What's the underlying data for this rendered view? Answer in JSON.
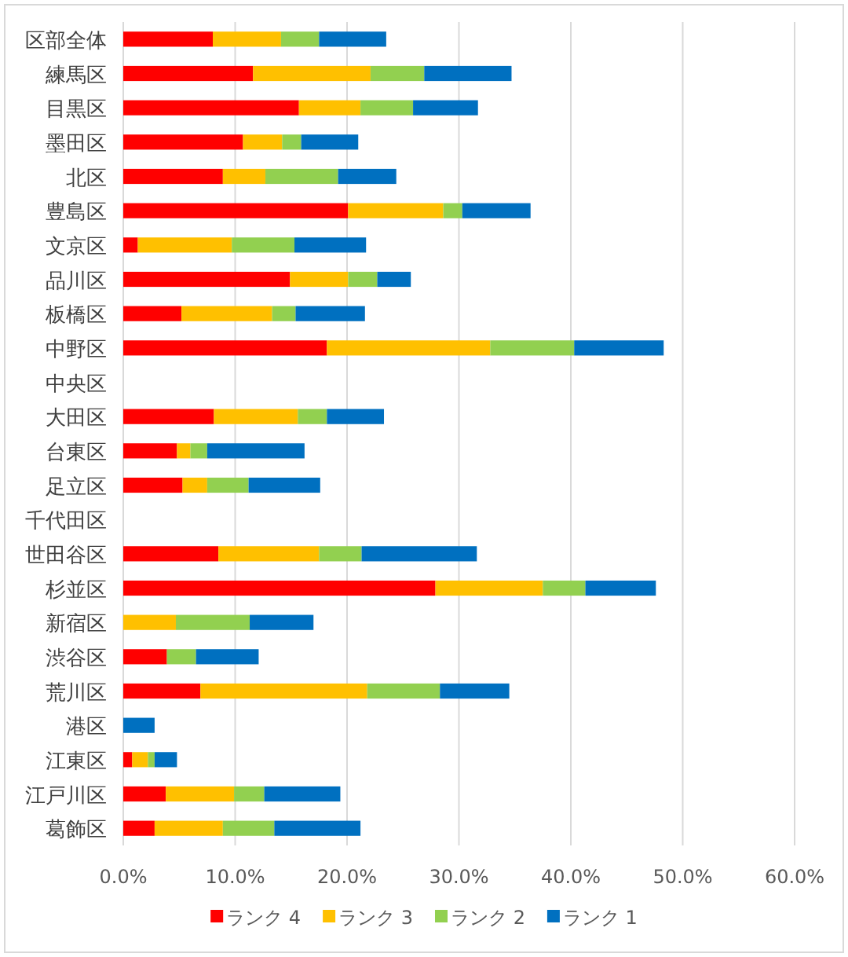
{
  "chart_data": {
    "type": "bar",
    "orientation": "horizontal",
    "stacked": true,
    "categories": [
      "区部全体",
      "練馬区",
      "目黒区",
      "墨田区",
      "北区",
      "豊島区",
      "文京区",
      "品川区",
      "板橋区",
      "中野区",
      "中央区",
      "大田区",
      "台東区",
      "足立区",
      "千代田区",
      "世田谷区",
      "杉並区",
      "新宿区",
      "渋谷区",
      "荒川区",
      "港区",
      "江東区",
      "江戸川区",
      "葛飾区"
    ],
    "series": [
      {
        "name": "ランク 4",
        "color": "#ff0000",
        "values": [
          8.0,
          11.6,
          15.7,
          10.7,
          8.9,
          20.1,
          1.3,
          14.9,
          5.2,
          18.2,
          null,
          8.1,
          4.8,
          5.3,
          null,
          8.5,
          27.9,
          0,
          3.9,
          6.9,
          0,
          0.8,
          3.8,
          2.8
        ]
      },
      {
        "name": "ランク 3",
        "color": "#ffc000",
        "values": [
          6.1,
          10.5,
          5.5,
          3.5,
          3.8,
          8.5,
          8.4,
          5.2,
          8.1,
          14.6,
          null,
          7.5,
          1.2,
          2.2,
          null,
          9.0,
          9.6,
          4.7,
          0,
          14.9,
          0,
          1.4,
          6.1,
          6.1
        ]
      },
      {
        "name": "ランク 2",
        "color": "#92d050",
        "values": [
          3.4,
          4.8,
          4.7,
          1.7,
          6.5,
          1.7,
          5.6,
          2.6,
          2.1,
          7.5,
          null,
          2.6,
          1.5,
          3.7,
          null,
          3.8,
          3.8,
          6.6,
          2.6,
          6.5,
          0,
          0.6,
          2.7,
          4.6
        ]
      },
      {
        "name": "ランク 1",
        "color": "#0070c0",
        "values": [
          6.0,
          7.8,
          5.8,
          5.1,
          5.2,
          6.1,
          6.4,
          3.0,
          6.2,
          8.0,
          null,
          5.1,
          8.7,
          6.4,
          null,
          10.3,
          6.3,
          5.7,
          5.6,
          6.2,
          2.8,
          2.0,
          6.8,
          7.7
        ]
      }
    ],
    "xlim": [
      0,
      60
    ],
    "xticks": [
      {
        "value": 0,
        "label": "0.0%"
      },
      {
        "value": 10,
        "label": "10.0%"
      },
      {
        "value": 20,
        "label": "20.0%"
      },
      {
        "value": 30,
        "label": "30.0%"
      },
      {
        "value": 40,
        "label": "40.0%"
      },
      {
        "value": 50,
        "label": "50.0%"
      },
      {
        "value": 60,
        "label": "60.0%"
      }
    ],
    "grid": "x",
    "legend": "bottom"
  }
}
